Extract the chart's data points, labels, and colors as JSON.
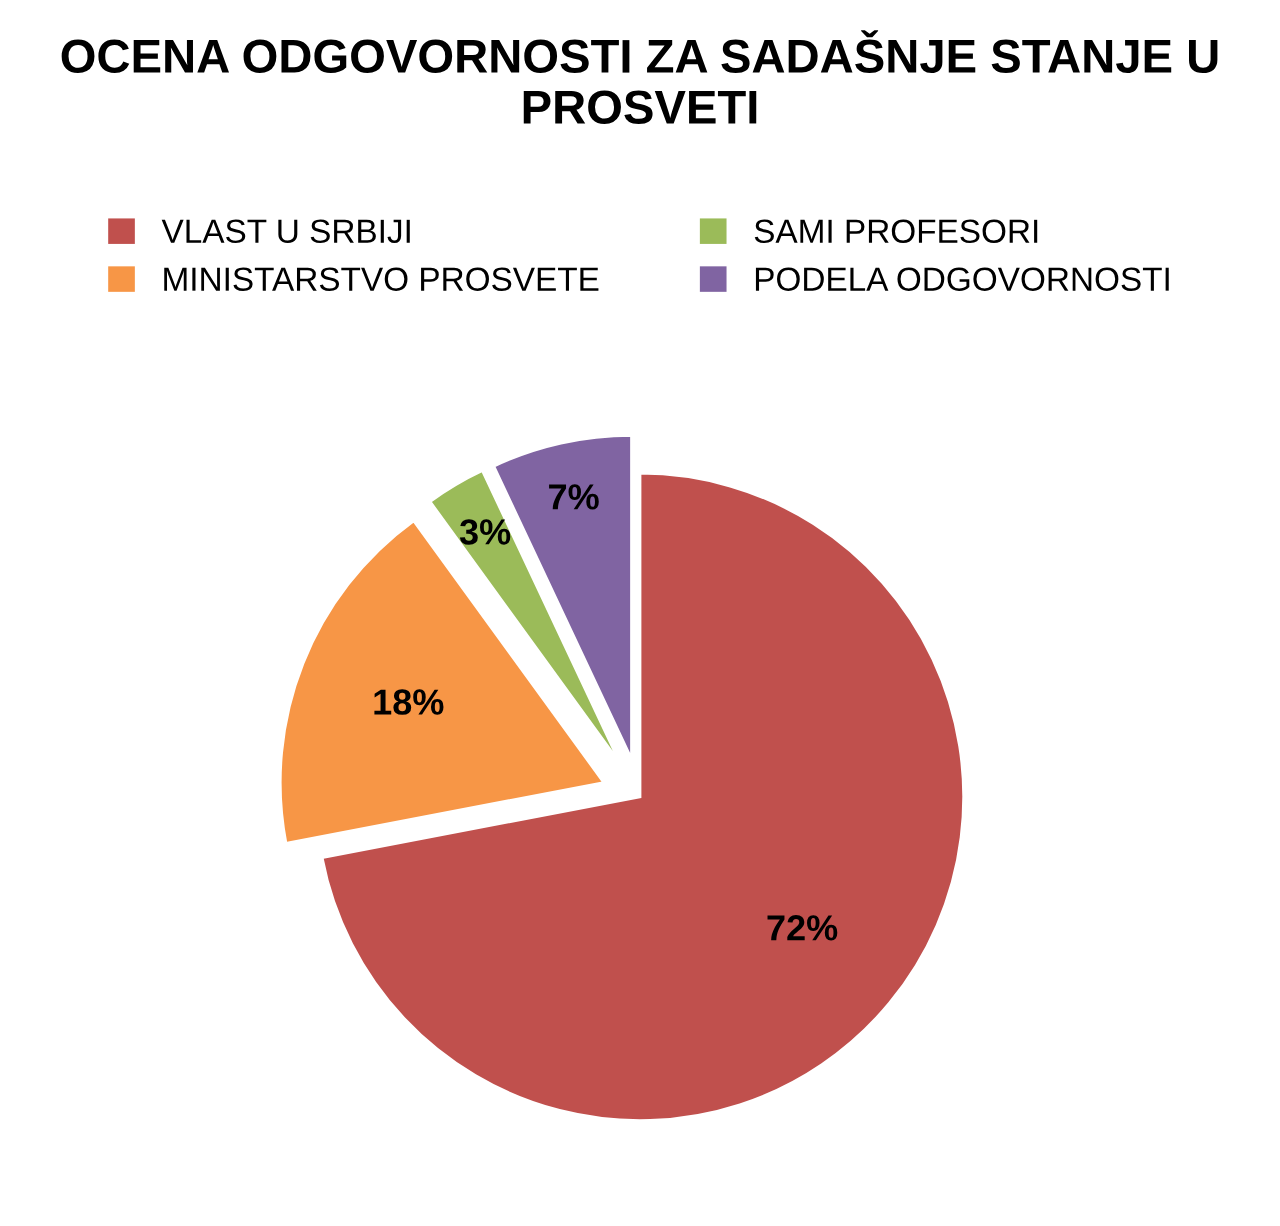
{
  "chart_data": {
    "type": "pie",
    "title": "OCENA ODGOVORNOSTI ZA SADAŠNJE STANJE U PROSVETI",
    "categories": [
      "VLAST U SRBIJI",
      "MINISTARSTVO PROSVETE",
      "SAMI PROFESORI",
      "PODELA ODGOVORNOSTI"
    ],
    "values": [
      72,
      18,
      3,
      7
    ],
    "value_labels": [
      "72%",
      "18%",
      "3%",
      "7%"
    ],
    "colors": [
      "#c0504d",
      "#f79646",
      "#9bbb59",
      "#8064a2"
    ],
    "legend": "top"
  }
}
